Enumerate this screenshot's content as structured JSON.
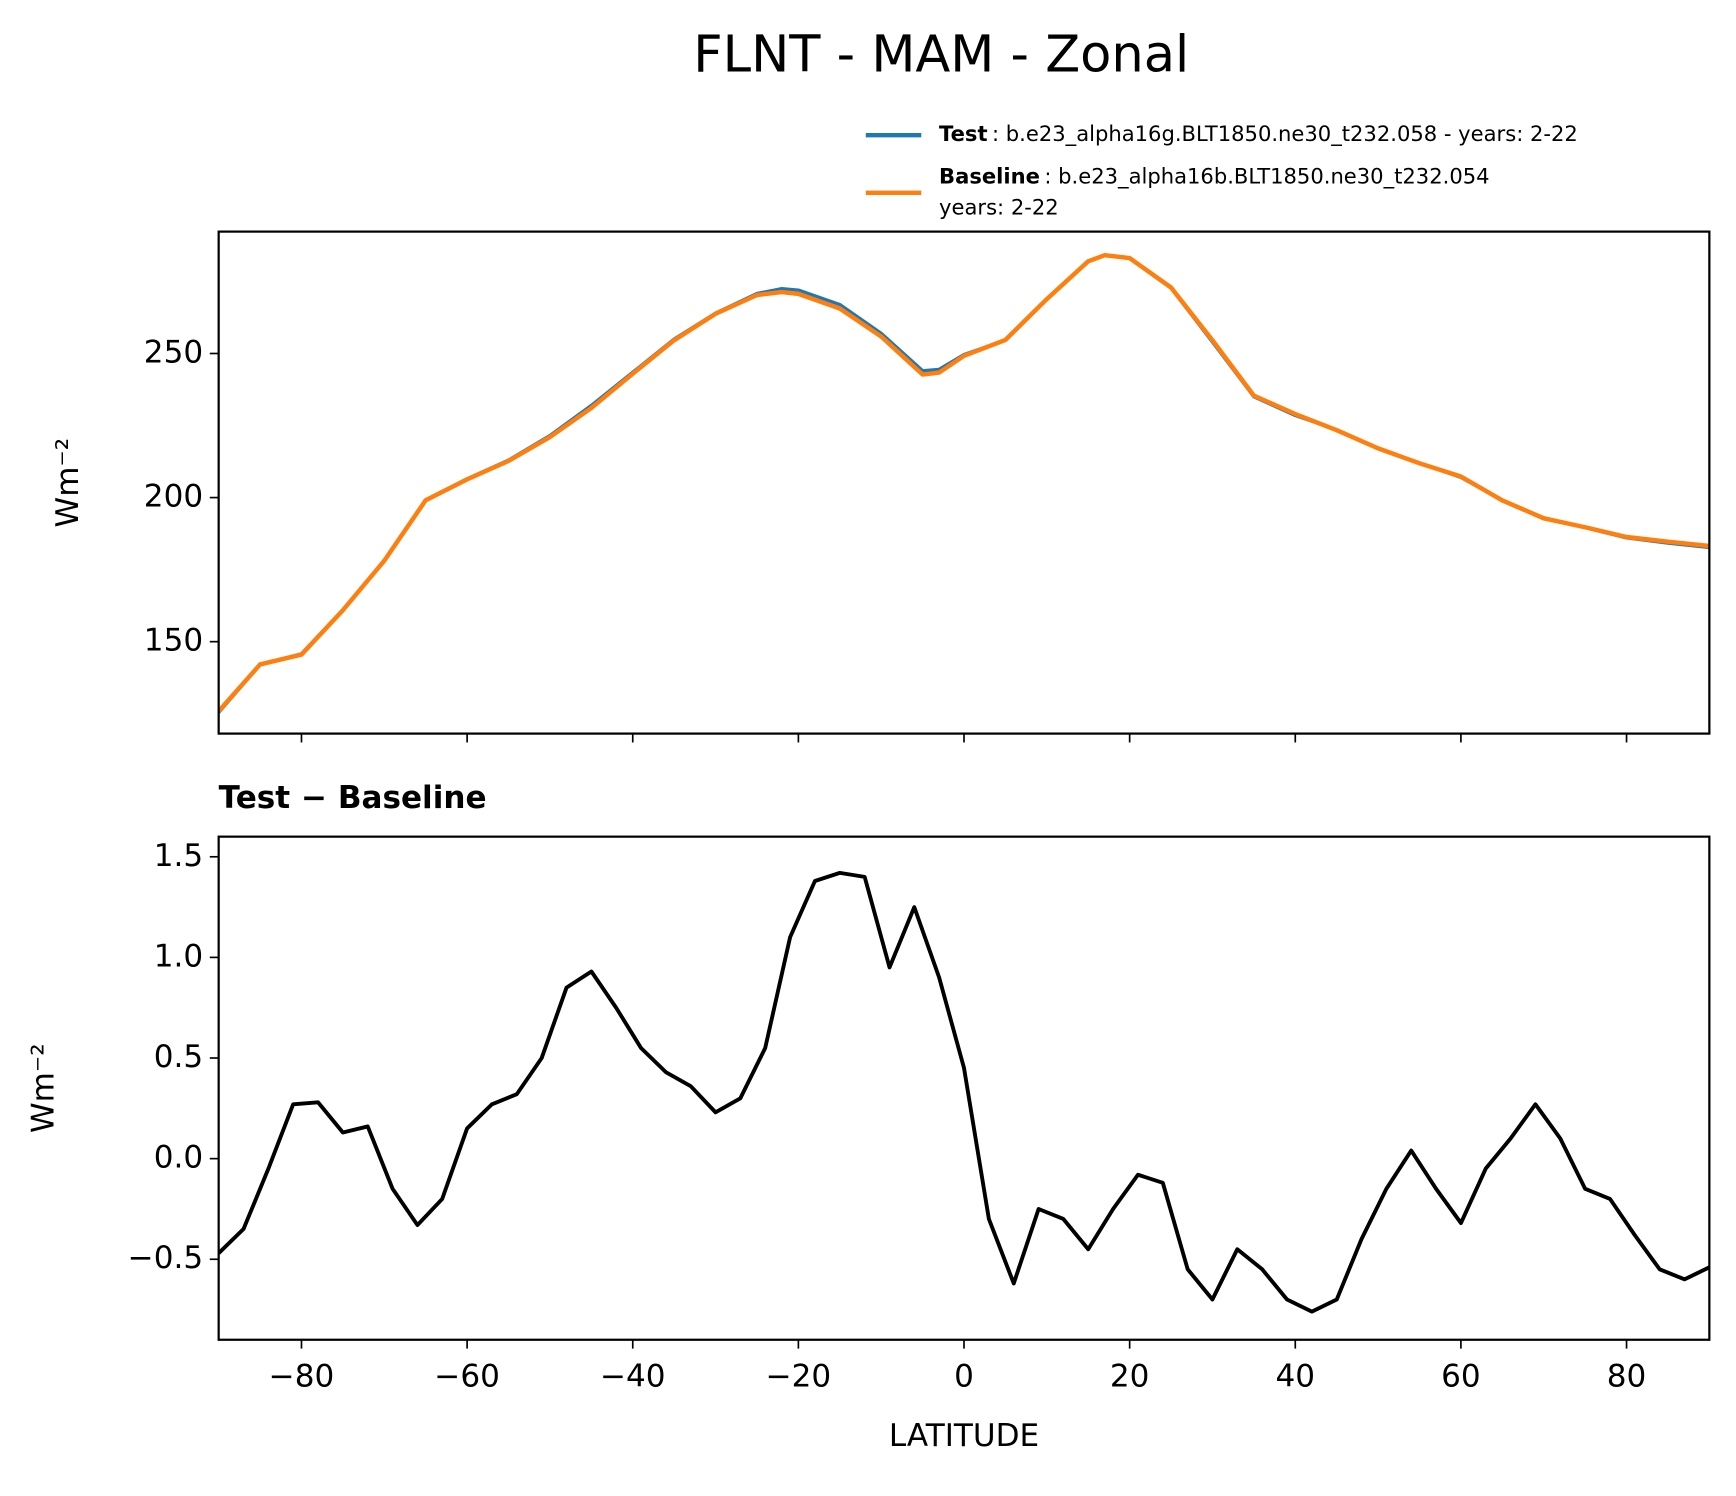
{
  "chart_data": [
    {
      "type": "line",
      "title": "FLNT - MAM - Zonal",
      "ylabel": "Wm⁻²",
      "x": [
        -90,
        -85,
        -80,
        -75,
        -70,
        -65,
        -60,
        -55,
        -50,
        -45,
        -40,
        -35,
        -30,
        -25,
        -22,
        -20,
        -15,
        -10,
        -5,
        -3,
        0,
        5,
        10,
        15,
        17,
        20,
        25,
        30,
        35,
        40,
        45,
        50,
        55,
        60,
        65,
        70,
        75,
        80,
        85,
        90
      ],
      "series": [
        {
          "name": "Test",
          "label": ": b.e23_alpha16g.BLT1850.ne30_t232.058 - years: 2-22",
          "color": "#1f77b4",
          "values": [
            125.4,
            142,
            145.8,
            161,
            178,
            199,
            206.5,
            213,
            221.5,
            232,
            243.5,
            255,
            264,
            270.8,
            272.5,
            272,
            267,
            257,
            244,
            244.5,
            249.6,
            254.6,
            268.8,
            282,
            284.2,
            283,
            272.7,
            254,
            235,
            228.5,
            223.5,
            217,
            212,
            207,
            199,
            193,
            189.6,
            186,
            184.2,
            182.7
          ]
        },
        {
          "name": "Baseline",
          "label": ": b.e23_alpha16b.BLT1850.ne30_t232.054",
          "label2": "years: 2-22",
          "color": "#ff7f0e",
          "values": [
            125.9,
            142.1,
            145.5,
            160.9,
            178.1,
            199.1,
            206.3,
            212.7,
            221,
            231.1,
            243,
            254.6,
            263.8,
            270.3,
            271.3,
            270.7,
            265.6,
            255.9,
            242.7,
            243.4,
            249.2,
            254.7,
            268.9,
            282,
            284.1,
            283.1,
            272.9,
            254.6,
            235.4,
            229,
            223.4,
            217.1,
            211.9,
            207.3,
            199,
            192.8,
            189.7,
            186.3,
            184.7,
            183.2
          ]
        }
      ],
      "ylim": [
        118.1,
        292.3
      ],
      "yticks": [
        150,
        200,
        250
      ],
      "xlim": [
        -90,
        90
      ]
    },
    {
      "type": "line",
      "title": "Test − Baseline",
      "ylabel": "Wm⁻²",
      "xlabel": "LATITUDE",
      "x": [
        -90,
        -87,
        -84,
        -81,
        -78,
        -75,
        -72,
        -69,
        -66,
        -63,
        -60,
        -57,
        -54,
        -51,
        -48,
        -45,
        -42,
        -39,
        -36,
        -33,
        -30,
        -27,
        -24,
        -21,
        -18,
        -15,
        -12,
        -9,
        -6,
        -3,
        0,
        3,
        6,
        9,
        12,
        15,
        18,
        21,
        24,
        27,
        30,
        33,
        36,
        39,
        42,
        45,
        48,
        51,
        54,
        57,
        60,
        63,
        66,
        69,
        72,
        75,
        78,
        81,
        84,
        87,
        90
      ],
      "series": [
        {
          "name": "Test − Baseline",
          "color": "#000000",
          "values": [
            -0.47,
            -0.35,
            -0.05,
            0.27,
            0.28,
            0.13,
            0.16,
            -0.15,
            -0.33,
            -0.2,
            0.15,
            0.27,
            0.32,
            0.5,
            0.85,
            0.93,
            0.75,
            0.55,
            0.43,
            0.36,
            0.23,
            0.3,
            0.55,
            1.1,
            1.38,
            1.42,
            1.4,
            0.95,
            1.25,
            0.9,
            0.45,
            -0.3,
            -0.62,
            -0.25,
            -0.3,
            -0.45,
            -0.25,
            -0.08,
            -0.12,
            -0.55,
            -0.7,
            -0.45,
            -0.55,
            -0.7,
            -0.76,
            -0.7,
            -0.4,
            -0.15,
            0.04,
            -0.15,
            -0.32,
            -0.05,
            0.1,
            0.27,
            0.1,
            -0.15,
            -0.2,
            -0.38,
            -0.55,
            -0.6,
            -0.54
          ]
        }
      ],
      "ylim": [
        -0.9,
        1.6
      ],
      "yticks": [
        {
          "value": -0.5,
          "label": "−0.5"
        },
        {
          "value": 0,
          "label": "0.0"
        },
        {
          "value": 0.5,
          "label": "0.5"
        },
        {
          "value": 1,
          "label": "1.0"
        },
        {
          "value": 1.5,
          "label": "1.5"
        }
      ],
      "xlim": [
        -90,
        90
      ],
      "xticks": [
        {
          "value": -80,
          "label": "−80"
        },
        {
          "value": -60,
          "label": "−60"
        },
        {
          "value": -40,
          "label": "−40"
        },
        {
          "value": -20,
          "label": "−20"
        },
        0,
        20,
        40,
        60,
        80
      ]
    }
  ]
}
